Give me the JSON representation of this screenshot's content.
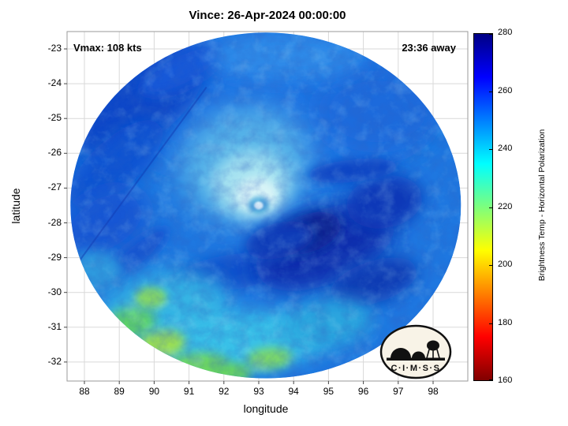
{
  "title": "Vince: 26-Apr-2024 00:00:00",
  "annotations": {
    "vmax": "Vmax: 108 kts",
    "eta": "23:36 away"
  },
  "axes": {
    "xlabel": "longitude",
    "ylabel": "latitude",
    "x_ticks": [
      "88",
      "89",
      "90",
      "91",
      "92",
      "93",
      "94",
      "95",
      "96",
      "97",
      "98"
    ],
    "y_ticks": [
      "-23",
      "-24",
      "-25",
      "-26",
      "-27",
      "-28",
      "-29",
      "-30",
      "-31",
      "-32"
    ]
  },
  "colorbar": {
    "label": "Brightness Temp - Horizontal Polarization",
    "ticks": [
      "160",
      "180",
      "200",
      "220",
      "240",
      "260",
      "280"
    ],
    "min": 160,
    "max": 280,
    "stops": [
      {
        "value": 160,
        "color": "#800000"
      },
      {
        "value": 175,
        "color": "#ff0000"
      },
      {
        "value": 205,
        "color": "#ffff00"
      },
      {
        "value": 220,
        "color": "#7dff7d"
      },
      {
        "value": 235,
        "color": "#00ffff"
      },
      {
        "value": 265,
        "color": "#0000ff"
      },
      {
        "value": 280,
        "color": "#000084"
      }
    ]
  },
  "logo": {
    "text": "C·I·M·S·S"
  },
  "chart_data": {
    "type": "heatmap",
    "title": "Vince: 26-Apr-2024 00:00:00",
    "storm_name": "Vince",
    "timestamp": "26-Apr-2024 00:00:00",
    "vmax_kts": 108,
    "eta_label": "23:36 away",
    "xlabel": "longitude",
    "ylabel": "latitude",
    "xlim": [
      87.5,
      99.0
    ],
    "ylim": [
      -32.55,
      -22.5
    ],
    "x_ticks": [
      88,
      89,
      90,
      91,
      92,
      93,
      94,
      95,
      96,
      97,
      98
    ],
    "y_ticks": [
      -23,
      -24,
      -25,
      -26,
      -27,
      -28,
      -29,
      -30,
      -31,
      -32
    ],
    "grid": true,
    "value_label": "Brightness Temp - Horizontal Polarization",
    "value_range": [
      160,
      280
    ],
    "colormap": "jet-reversed (high=dark blue, low=dark red)",
    "swath": {
      "center_lon": 93.2,
      "center_lat": -27.5,
      "radius_lon_deg": 5.6,
      "radius_lat_deg": 4.97,
      "base_color": "#1e77e0",
      "base_temp_K": 257
    },
    "eye": {
      "lon": 93.0,
      "lat": -27.5
    },
    "seam": {
      "from": {
        "lon": 87.85,
        "lat": -29.1
      },
      "to": {
        "lon": 91.5,
        "lat": -24.1
      }
    },
    "regions": [
      {
        "lon": 93.3,
        "lat": -24.6,
        "rx": 4.6,
        "ry": 2.0,
        "rot": 0,
        "color": "#1c72e2",
        "temp": 257,
        "blur": 24
      },
      {
        "lon": 89.6,
        "lat": -24.5,
        "rx": 2.2,
        "ry": 1.1,
        "rot": -38,
        "color": "#0f46c8",
        "temp": 266,
        "blur": 12
      },
      {
        "lon": 88.9,
        "lat": -26.3,
        "rx": 1.7,
        "ry": 0.7,
        "rot": -42,
        "color": "#1152d2",
        "temp": 264,
        "blur": 10
      },
      {
        "lon": 88.6,
        "lat": -28.0,
        "rx": 1.3,
        "ry": 0.9,
        "rot": -30,
        "color": "#1256d4",
        "temp": 263,
        "blur": 12
      },
      {
        "lon": 90.8,
        "lat": -23.6,
        "rx": 1.3,
        "ry": 0.5,
        "rot": -28,
        "color": "#1458d8",
        "temp": 263,
        "blur": 8
      },
      {
        "lon": 89.4,
        "lat": -29.0,
        "rx": 1.3,
        "ry": 0.35,
        "rot": -40,
        "color": "#1355d0",
        "temp": 263,
        "blur": 6
      },
      {
        "lon": 90.4,
        "lat": -29.9,
        "rx": 1.2,
        "ry": 0.3,
        "rot": -35,
        "color": "#1a66d8",
        "temp": 261,
        "blur": 6
      },
      {
        "lon": 92.3,
        "lat": -29.4,
        "rx": 1.7,
        "ry": 0.5,
        "rot": -8,
        "color": "#1050cc",
        "temp": 264,
        "blur": 8
      },
      {
        "lon": 96.4,
        "lat": -24.8,
        "rx": 1.7,
        "ry": 1.2,
        "rot": 0,
        "color": "#1b6adc",
        "temp": 259,
        "blur": 14
      },
      {
        "lon": 93.8,
        "lat": -23.2,
        "rx": 2.2,
        "ry": 0.7,
        "rot": 0,
        "color": "#2f8ae8",
        "temp": 254,
        "blur": 12
      },
      {
        "lon": 92.6,
        "lat": -26.3,
        "rx": 1.9,
        "ry": 1.6,
        "rot": -15,
        "color": "#57b4e8",
        "temp": 248,
        "blur": 18
      },
      {
        "lon": 92.8,
        "lat": -26.9,
        "rx": 1.1,
        "ry": 0.95,
        "rot": 0,
        "color": "#a6e2f0",
        "temp": 243,
        "blur": 10
      },
      {
        "lon": 92.95,
        "lat": -27.2,
        "rx": 0.62,
        "ry": 0.5,
        "rot": 0,
        "color": "#d9f4f7",
        "temp": 239,
        "blur": 6
      },
      {
        "lon": 93.0,
        "lat": -27.5,
        "rx": 0.3,
        "ry": 0.26,
        "rot": 0,
        "color": "#55aede",
        "temp": 249,
        "blur": 3
      },
      {
        "lon": 93.0,
        "lat": -27.5,
        "rx": 0.13,
        "ry": 0.11,
        "rot": 0,
        "color": "#effcff",
        "temp": 236,
        "blur": 1
      },
      {
        "lon": 94.9,
        "lat": -28.7,
        "rx": 2.1,
        "ry": 1.05,
        "rot": -22,
        "color": "#0a2fae",
        "temp": 271,
        "blur": 14
      },
      {
        "lon": 94.4,
        "lat": -28.3,
        "rx": 1.0,
        "ry": 0.55,
        "rot": -20,
        "color": "#07228f",
        "temp": 274,
        "blur": 8
      },
      {
        "lon": 96.3,
        "lat": -29.7,
        "rx": 1.3,
        "ry": 0.6,
        "rot": -18,
        "color": "#0d3ab4",
        "temp": 269,
        "blur": 10
      },
      {
        "lon": 96.6,
        "lat": -27.4,
        "rx": 1.1,
        "ry": 0.75,
        "rot": -10,
        "color": "#0c38b8",
        "temp": 269,
        "blur": 10
      },
      {
        "lon": 95.7,
        "lat": -26.5,
        "rx": 1.3,
        "ry": 0.32,
        "rot": -6,
        "color": "#0e44c4",
        "temp": 266,
        "blur": 6
      },
      {
        "lon": 93.6,
        "lat": -28.5,
        "rx": 1.0,
        "ry": 0.5,
        "rot": -14,
        "color": "#0c3ab8",
        "temp": 268,
        "blur": 8
      },
      {
        "lon": 90.3,
        "lat": -30.6,
        "rx": 1.9,
        "ry": 1.2,
        "rot": -10,
        "color": "#35b4e4",
        "temp": 245,
        "blur": 14
      },
      {
        "lon": 92.6,
        "lat": -31.4,
        "rx": 2.4,
        "ry": 0.85,
        "rot": -4,
        "color": "#38c0e8",
        "temp": 243,
        "blur": 12
      },
      {
        "lon": 95.0,
        "lat": -30.9,
        "rx": 1.3,
        "ry": 0.7,
        "rot": -8,
        "color": "#2aa6de",
        "temp": 247,
        "blur": 12
      },
      {
        "lon": 89.3,
        "lat": -30.9,
        "rx": 0.75,
        "ry": 0.45,
        "rot": -15,
        "color": "#5fd468",
        "temp": 221,
        "blur": 7
      },
      {
        "lon": 90.2,
        "lat": -31.5,
        "rx": 0.7,
        "ry": 0.4,
        "rot": -10,
        "color": "#9ade55",
        "temp": 214,
        "blur": 6
      },
      {
        "lon": 89.9,
        "lat": -30.15,
        "rx": 0.45,
        "ry": 0.3,
        "rot": 0,
        "color": "#8adf60",
        "temp": 217,
        "blur": 5
      },
      {
        "lon": 91.2,
        "lat": -32.1,
        "rx": 0.9,
        "ry": 0.35,
        "rot": -5,
        "color": "#6fd862",
        "temp": 219,
        "blur": 6
      },
      {
        "lon": 93.3,
        "lat": -31.9,
        "rx": 0.65,
        "ry": 0.3,
        "rot": -5,
        "color": "#7fdc66",
        "temp": 218,
        "blur": 6
      },
      {
        "lon": 92.1,
        "lat": -32.3,
        "rx": 0.7,
        "ry": 0.28,
        "rot": 0,
        "color": "#67d45f",
        "temp": 220,
        "blur": 6
      },
      {
        "lon": 88.3,
        "lat": -29.4,
        "rx": 0.8,
        "ry": 0.6,
        "rot": 0,
        "color": "#2f9ade",
        "temp": 248,
        "blur": 8
      }
    ]
  }
}
